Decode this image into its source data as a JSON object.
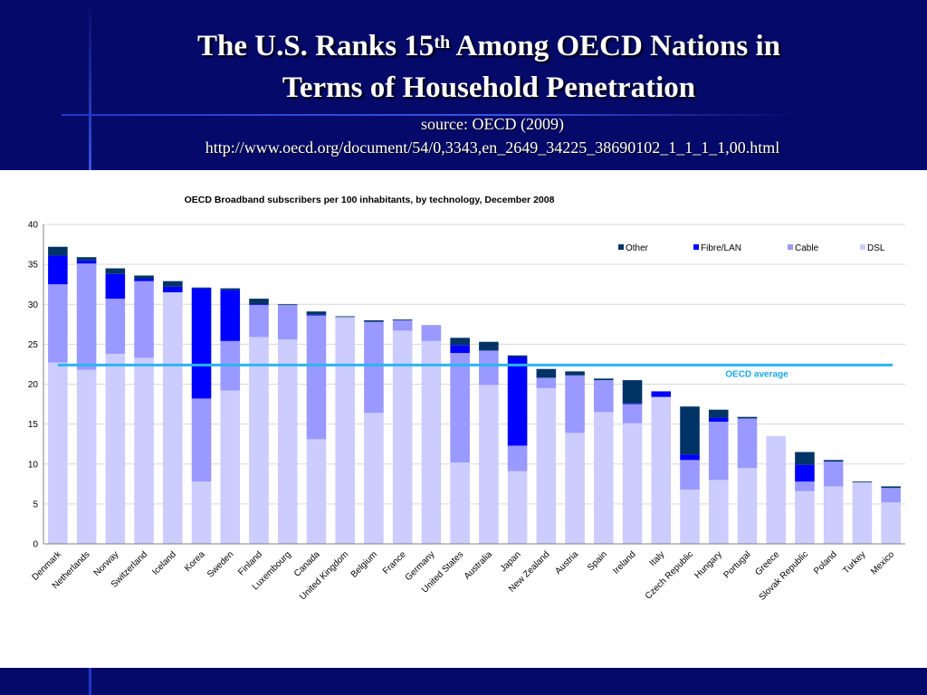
{
  "slide": {
    "title_line1_prefix": "The U.S. Ranks 15",
    "title_sup": "th",
    "title_line1_suffix": " Among OECD Nations in",
    "title_line2": "Terms of Household Penetration",
    "source_line1": "source: OECD (2009)",
    "source_line2": "http://www.oecd.org/document/54/0,3343,en_2649_34225_38690102_1_1_1_1,00.html"
  },
  "colors": {
    "header_bg": "#050A6A",
    "DSL": "#CCCCFF",
    "Cable": "#9999FF",
    "Fibre/LAN": "#0000FF",
    "Other": "#003366",
    "average_line": "#29B5F0"
  },
  "chart_data": {
    "type": "bar",
    "stacked": true,
    "title": "OECD Broadband subscribers per 100 inhabitants, by technology, December 2008",
    "xlabel": "",
    "ylabel": "",
    "ylim": [
      0,
      40
    ],
    "yticks": [
      0,
      5,
      10,
      15,
      20,
      25,
      30,
      35,
      40
    ],
    "grid": true,
    "legend_position": "top-right",
    "categories": [
      "Denmark",
      "Netherlands",
      "Norway",
      "Switzerland",
      "Iceland",
      "Korea",
      "Sweden",
      "Finland",
      "Luxembourg",
      "Canada",
      "United Kingdom",
      "Belgium",
      "France",
      "Germany",
      "United States",
      "Australia",
      "Japan",
      "New Zealand",
      "Austria",
      "Spain",
      "Ireland",
      "Italy",
      "Czech Republic",
      "Hungary",
      "Portugal",
      "Greece",
      "Slovak Republic",
      "Poland",
      "Turkey",
      "Mexico"
    ],
    "series": [
      {
        "name": "DSL",
        "values": [
          22.7,
          21.8,
          23.8,
          23.3,
          31.5,
          7.8,
          19.2,
          25.9,
          25.6,
          13.1,
          28.4,
          16.4,
          26.7,
          25.4,
          10.2,
          19.9,
          9.1,
          19.5,
          13.9,
          16.5,
          15.1,
          18.4,
          6.8,
          8.0,
          9.5,
          13.5,
          6.6,
          7.2,
          7.7,
          5.2
        ]
      },
      {
        "name": "Cable",
        "values": [
          9.8,
          13.3,
          6.9,
          9.6,
          0.0,
          10.4,
          6.2,
          4.0,
          4.3,
          15.5,
          0.0,
          11.4,
          1.3,
          2.0,
          13.7,
          4.3,
          3.2,
          1.3,
          7.2,
          4.0,
          2.4,
          0.0,
          3.7,
          7.3,
          6.2,
          0.0,
          1.2,
          3.1,
          0.0,
          1.8
        ]
      },
      {
        "name": "Fibre/LAN",
        "values": [
          3.6,
          0.4,
          3.1,
          0.3,
          0.7,
          13.8,
          6.4,
          0.1,
          0.0,
          0.1,
          0.0,
          0.0,
          0.0,
          0.0,
          1.0,
          0.0,
          11.1,
          0.0,
          0.0,
          0.0,
          0.1,
          0.7,
          0.7,
          0.5,
          0.0,
          0.0,
          2.1,
          0.0,
          0.0,
          0.0
        ]
      },
      {
        "name": "Other",
        "values": [
          1.1,
          0.4,
          0.7,
          0.4,
          0.7,
          0.1,
          0.2,
          0.7,
          0.1,
          0.4,
          0.1,
          0.2,
          0.1,
          0.0,
          0.9,
          1.1,
          0.2,
          1.1,
          0.5,
          0.2,
          2.9,
          0.0,
          6.0,
          1.0,
          0.2,
          0.0,
          1.6,
          0.2,
          0.1,
          0.2
        ]
      }
    ],
    "legend": [
      "Other",
      "Fibre/LAN",
      "Cable",
      "DSL"
    ],
    "reference_line": {
      "label": "OECD average",
      "value": 22.4
    }
  }
}
